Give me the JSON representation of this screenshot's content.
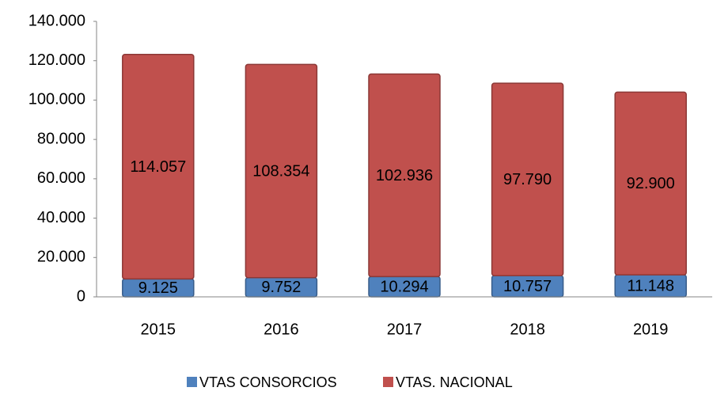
{
  "chart_data": {
    "type": "stacked_bar",
    "categories": [
      "2015",
      "2016",
      "2017",
      "2018",
      "2019"
    ],
    "series": [
      {
        "name": "VTAS CONSORCIOS",
        "color": "#4f81bd",
        "values": [
          9125,
          9752,
          10294,
          10757,
          11148
        ],
        "value_labels": [
          "9.125",
          "9.752",
          "10.294",
          "10.757",
          "11.148"
        ]
      },
      {
        "name": "VTAS. NACIONAL",
        "color": "#c0504d",
        "values": [
          114057,
          108354,
          102936,
          97790,
          92900
        ],
        "value_labels": [
          "114.057",
          "108.354",
          "102.936",
          "97.790",
          "92.900"
        ]
      }
    ],
    "ylim": [
      0,
      140000
    ],
    "yticks": [
      0,
      {
        "value": 20000,
        "label": "20.000"
      },
      {
        "value": 40000,
        "label": "40.000"
      },
      {
        "value": 60000,
        "label": "60.000"
      },
      {
        "value": 80000,
        "label": "80.000"
      },
      {
        "value": 100000,
        "label": "100.000"
      },
      {
        "value": 120000,
        "label": "120.000"
      },
      {
        "value": 140000,
        "label": "140.000"
      }
    ],
    "grid": false,
    "legend": "bottom"
  }
}
